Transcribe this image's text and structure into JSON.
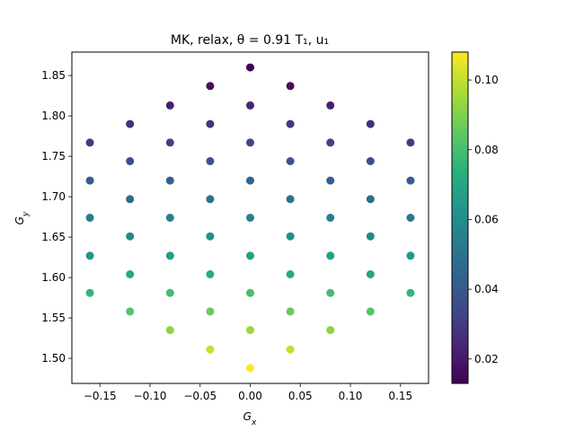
{
  "chart_data": {
    "type": "scatter",
    "title": "MK, relax,  θ = 0.91 T₁, u₁",
    "xlabel": "G_x",
    "ylabel": "G_y",
    "xlim": [
      -0.178,
      0.178
    ],
    "ylim": [
      1.469,
      1.879
    ],
    "xticks": [
      -0.15,
      -0.1,
      -0.05,
      0.0,
      0.05,
      0.1,
      0.15
    ],
    "xtick_labels": [
      "−0.15",
      "−0.10",
      "−0.05",
      "0.00",
      "0.05",
      "0.10",
      "0.15"
    ],
    "yticks": [
      1.5,
      1.55,
      1.6,
      1.65,
      1.7,
      1.75,
      1.8,
      1.85
    ],
    "ytick_labels": [
      "1.50",
      "1.55",
      "1.60",
      "1.65",
      "1.70",
      "1.75",
      "1.80",
      "1.85"
    ],
    "colormap": "viridis",
    "colorbar": {
      "range": [
        0.013,
        0.108
      ],
      "ticks": [
        0.02,
        0.04,
        0.06,
        0.08,
        0.1
      ],
      "tick_labels": [
        "0.02",
        "0.04",
        "0.06",
        "0.08",
        "0.10"
      ]
    },
    "points": [
      {
        "x": 0.0,
        "y": 1.86,
        "c": 0.013
      },
      {
        "x": -0.04,
        "y": 1.837,
        "c": 0.017
      },
      {
        "x": 0.04,
        "y": 1.837,
        "c": 0.017
      },
      {
        "x": -0.08,
        "y": 1.813,
        "c": 0.022
      },
      {
        "x": 0.0,
        "y": 1.813,
        "c": 0.023
      },
      {
        "x": 0.08,
        "y": 1.813,
        "c": 0.022
      },
      {
        "x": -0.12,
        "y": 1.79,
        "c": 0.026
      },
      {
        "x": -0.04,
        "y": 1.79,
        "c": 0.028
      },
      {
        "x": 0.04,
        "y": 1.79,
        "c": 0.028
      },
      {
        "x": 0.12,
        "y": 1.79,
        "c": 0.026
      },
      {
        "x": -0.16,
        "y": 1.767,
        "c": 0.03
      },
      {
        "x": -0.08,
        "y": 1.767,
        "c": 0.032
      },
      {
        "x": 0.0,
        "y": 1.767,
        "c": 0.033
      },
      {
        "x": 0.08,
        "y": 1.767,
        "c": 0.032
      },
      {
        "x": 0.16,
        "y": 1.767,
        "c": 0.03
      },
      {
        "x": -0.12,
        "y": 1.744,
        "c": 0.036
      },
      {
        "x": -0.04,
        "y": 1.744,
        "c": 0.038
      },
      {
        "x": 0.04,
        "y": 1.744,
        "c": 0.038
      },
      {
        "x": 0.12,
        "y": 1.744,
        "c": 0.036
      },
      {
        "x": -0.16,
        "y": 1.72,
        "c": 0.041
      },
      {
        "x": -0.08,
        "y": 1.72,
        "c": 0.043
      },
      {
        "x": 0.0,
        "y": 1.72,
        "c": 0.044
      },
      {
        "x": 0.08,
        "y": 1.72,
        "c": 0.043
      },
      {
        "x": 0.16,
        "y": 1.72,
        "c": 0.041
      },
      {
        "x": -0.12,
        "y": 1.697,
        "c": 0.047
      },
      {
        "x": -0.04,
        "y": 1.697,
        "c": 0.049
      },
      {
        "x": 0.04,
        "y": 1.697,
        "c": 0.049
      },
      {
        "x": 0.12,
        "y": 1.697,
        "c": 0.047
      },
      {
        "x": -0.16,
        "y": 1.674,
        "c": 0.052
      },
      {
        "x": -0.08,
        "y": 1.674,
        "c": 0.054
      },
      {
        "x": 0.0,
        "y": 1.674,
        "c": 0.055
      },
      {
        "x": 0.08,
        "y": 1.674,
        "c": 0.054
      },
      {
        "x": 0.16,
        "y": 1.674,
        "c": 0.052
      },
      {
        "x": -0.12,
        "y": 1.651,
        "c": 0.058
      },
      {
        "x": -0.04,
        "y": 1.651,
        "c": 0.06
      },
      {
        "x": 0.04,
        "y": 1.651,
        "c": 0.06
      },
      {
        "x": 0.12,
        "y": 1.651,
        "c": 0.058
      },
      {
        "x": -0.16,
        "y": 1.627,
        "c": 0.063
      },
      {
        "x": -0.08,
        "y": 1.627,
        "c": 0.066
      },
      {
        "x": 0.0,
        "y": 1.627,
        "c": 0.067
      },
      {
        "x": 0.08,
        "y": 1.627,
        "c": 0.066
      },
      {
        "x": 0.16,
        "y": 1.627,
        "c": 0.063
      },
      {
        "x": -0.12,
        "y": 1.604,
        "c": 0.07
      },
      {
        "x": -0.04,
        "y": 1.604,
        "c": 0.072
      },
      {
        "x": 0.04,
        "y": 1.604,
        "c": 0.072
      },
      {
        "x": 0.12,
        "y": 1.604,
        "c": 0.07
      },
      {
        "x": -0.16,
        "y": 1.581,
        "c": 0.076
      },
      {
        "x": -0.08,
        "y": 1.581,
        "c": 0.079
      },
      {
        "x": 0.0,
        "y": 1.581,
        "c": 0.08
      },
      {
        "x": 0.08,
        "y": 1.581,
        "c": 0.079
      },
      {
        "x": 0.16,
        "y": 1.581,
        "c": 0.076
      },
      {
        "x": -0.12,
        "y": 1.558,
        "c": 0.083
      },
      {
        "x": -0.04,
        "y": 1.558,
        "c": 0.086
      },
      {
        "x": 0.04,
        "y": 1.558,
        "c": 0.086
      },
      {
        "x": 0.12,
        "y": 1.558,
        "c": 0.083
      },
      {
        "x": -0.08,
        "y": 1.535,
        "c": 0.092
      },
      {
        "x": 0.0,
        "y": 1.535,
        "c": 0.094
      },
      {
        "x": 0.08,
        "y": 1.535,
        "c": 0.092
      },
      {
        "x": -0.04,
        "y": 1.511,
        "c": 0.1
      },
      {
        "x": 0.04,
        "y": 1.511,
        "c": 0.1
      },
      {
        "x": 0.0,
        "y": 1.488,
        "c": 0.108
      }
    ]
  }
}
